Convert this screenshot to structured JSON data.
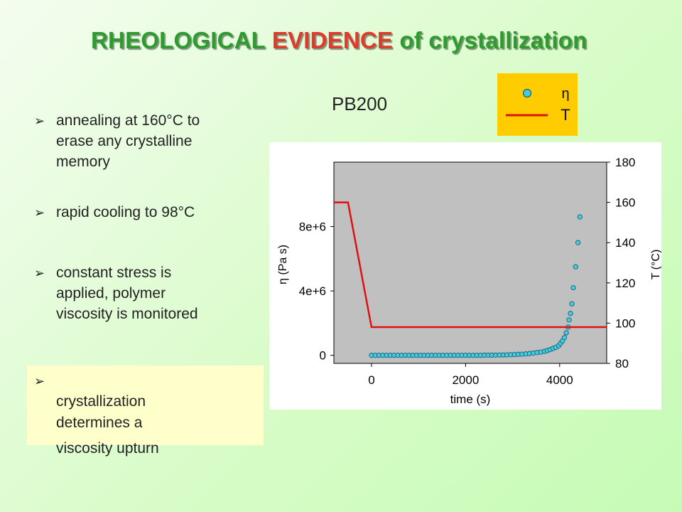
{
  "slide": {
    "title_part1": "RHEOLOGICAL ",
    "title_part2": "EVIDENCE",
    "title_part3": " of crystallization",
    "accent_color": "#e03a2c",
    "title_color": "#2f9a2f",
    "bullet_icon": "arrow-right-icon",
    "bullets": [
      {
        "text": "annealing at 160°C to\nerase any crystalline\nmemory"
      },
      {
        "text": "rapid cooling to 98°C"
      },
      {
        "text": "constant stress is\napplied, polymer\nviscosity is monitored"
      }
    ],
    "callout": {
      "line1": "crystallization\ndetermines a",
      "line2": "viscosity upturn",
      "background": "#ffffcc"
    },
    "sample_label": "PB200"
  },
  "chart_data": {
    "type": "scatter",
    "legend": {
      "placement": "above-right",
      "background": "#ffcc00",
      "entries": [
        {
          "label": "η",
          "marker": "circle",
          "color": "#44ccdd"
        },
        {
          "label": "T",
          "marker": "line",
          "color": "#e01010"
        }
      ]
    },
    "xlabel": "time (s)",
    "ylabel": "η (Pa s)",
    "y2label": "T (°C)",
    "xlim": [
      -800,
      5000
    ],
    "ylim": [
      -500000,
      12000000
    ],
    "y2lim": [
      80,
      180
    ],
    "x_ticks": [
      0,
      2000,
      4000
    ],
    "x_tick_labels": [
      "0",
      "2000",
      "4000"
    ],
    "y_ticks": [
      0,
      4000000,
      8000000
    ],
    "y_tick_labels": [
      "0",
      "4e+6",
      "8e+6"
    ],
    "y2_ticks": [
      80,
      100,
      120,
      140,
      160,
      180
    ],
    "y2_tick_labels": [
      "80",
      "100",
      "120",
      "140",
      "160",
      "180"
    ],
    "plot_background": "#c0c0c0",
    "series": [
      {
        "name": "η",
        "axis": "left",
        "color": "#44ccdd",
        "x": [
          0,
          80,
          160,
          240,
          320,
          400,
          480,
          560,
          640,
          720,
          800,
          880,
          960,
          1040,
          1120,
          1200,
          1280,
          1360,
          1440,
          1520,
          1600,
          1680,
          1760,
          1840,
          1920,
          2000,
          2080,
          2160,
          2240,
          2320,
          2400,
          2480,
          2560,
          2640,
          2720,
          2800,
          2880,
          2960,
          3040,
          3120,
          3200,
          3280,
          3360,
          3440,
          3520,
          3600,
          3680,
          3740,
          3800,
          3860,
          3920,
          3980,
          4020,
          4060,
          4100,
          4140,
          4180,
          4200,
          4230,
          4260,
          4290,
          4340,
          4390,
          4430
        ],
        "y": [
          0,
          0,
          0,
          0,
          0,
          0,
          0,
          0,
          0,
          0,
          0,
          0,
          0,
          0,
          0,
          0,
          0,
          0,
          0,
          0,
          0,
          0,
          0,
          0,
          0,
          0,
          0,
          0,
          0,
          0,
          10000,
          10000,
          10000,
          15000,
          20000,
          25000,
          30000,
          40000,
          50000,
          60000,
          70000,
          90000,
          110000,
          140000,
          170000,
          200000,
          250000,
          300000,
          360000,
          430000,
          500000,
          600000,
          750000,
          900000,
          1100000,
          1400000,
          1750000,
          2200000,
          2600000,
          3200000,
          4200000,
          5500000,
          7000000,
          8600000
        ]
      },
      {
        "name": "T",
        "axis": "right",
        "color": "#e01010",
        "x": [
          -800,
          -500,
          0,
          5000
        ],
        "y": [
          160,
          160,
          98,
          98
        ]
      }
    ]
  }
}
